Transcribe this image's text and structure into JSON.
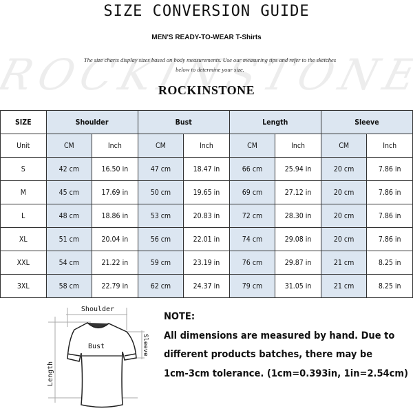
{
  "title": "SIZE CONVERSION GUIDE",
  "subtitle": "MEN'S READY-TO-WEAR T-Shirts",
  "description": [
    "The size charts display sizes based on body measurements.  Use our measuring tips and refer to the sketches",
    "below to determine your size."
  ],
  "watermark": "ROCKINSTONE",
  "brand": "ROCKINSTONE",
  "colors": {
    "header_blue": "#dce6f1",
    "border": "#333333"
  },
  "table": {
    "size_header": "SIZE",
    "groups": [
      "Shoulder",
      "Bust",
      "Length",
      "Sleeve"
    ],
    "unit_label": "Unit",
    "units": [
      "CM",
      "Inch",
      "CM",
      "Inch",
      "CM",
      "Inch",
      "CM",
      "Inch"
    ],
    "rows": [
      {
        "size": "S",
        "values": [
          "42 cm",
          "16.50 in",
          "47 cm",
          "18.47 in",
          "66 cm",
          "25.94 in",
          "20 cm",
          "7.86 in"
        ]
      },
      {
        "size": "M",
        "values": [
          "45 cm",
          "17.69 in",
          "50 cm",
          "19.65 in",
          "69 cm",
          "27.12 in",
          "20 cm",
          "7.86 in"
        ]
      },
      {
        "size": "L",
        "values": [
          "48 cm",
          "18.86 in",
          "53 cm",
          "20.83 in",
          "72 cm",
          "28.30 in",
          "20 cm",
          "7.86 in"
        ]
      },
      {
        "size": "XL",
        "values": [
          "51 cm",
          "20.04 in",
          "56 cm",
          "22.01 in",
          "74 cm",
          "29.08 in",
          "20 cm",
          "7.86 in"
        ]
      },
      {
        "size": "XXL",
        "values": [
          "54 cm",
          "21.22 in",
          "59 cm",
          "23.19 in",
          "76 cm",
          "29.87 in",
          "21 cm",
          "8.25 in"
        ]
      },
      {
        "size": "3XL",
        "values": [
          "58 cm",
          "22.79 in",
          "62 cm",
          "24.37 in",
          "79 cm",
          "31.05 in",
          "21 cm",
          "8.25 in"
        ]
      }
    ]
  },
  "diagram": {
    "shoulder": "Shoulder",
    "bust": "Bust",
    "sleeve": "Sleeve",
    "length": "Length"
  },
  "note": {
    "heading": "NOTE:",
    "lines": [
      "All dimensions are measured by hand. Due to",
      "different products batches, there may be",
      "1cm-3cm tolerance. (1cm=0.393in, 1in=2.54cm)"
    ]
  }
}
